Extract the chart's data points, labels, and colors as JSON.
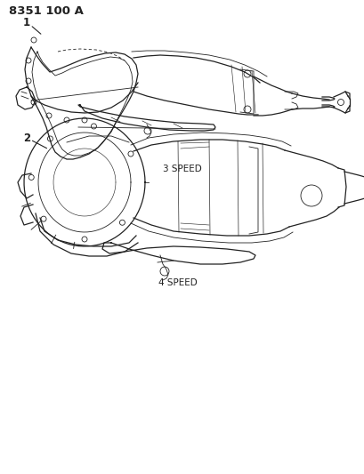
{
  "bg_color": "#ffffff",
  "line_color": "#222222",
  "title_text": "8351 100 A",
  "label1": "1",
  "label2": "2",
  "speed1_label": "3 SPEED",
  "speed2_label": "4 SPEED",
  "figsize": [
    4.1,
    5.33
  ],
  "dpi": 100
}
